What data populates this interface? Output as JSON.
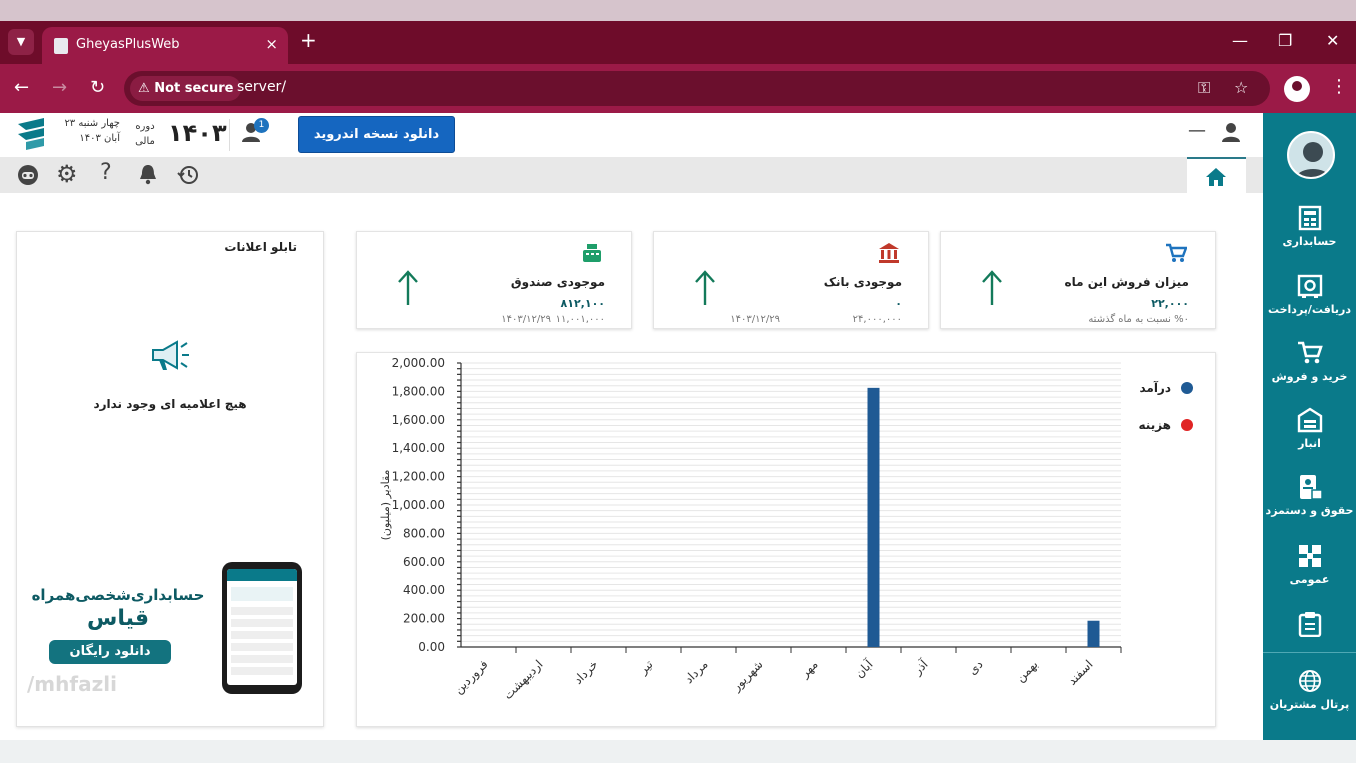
{
  "browser": {
    "tab_title": "GheyasPlusWeb",
    "security_label": "Not secure",
    "url": "server/",
    "tab_close": "×",
    "new_tab": "+",
    "minimize": "—",
    "restore": "❐",
    "close": "✕"
  },
  "header": {
    "date_line1": "چهار شنبه ۲۳",
    "date_line2": "آبان ۱۴۰۳",
    "period_label": "دوره مالی",
    "year": "۱۴۰۳",
    "user_badge_count": "1",
    "download_button": "دانلود نسخه اندروید",
    "minus": "—"
  },
  "sidebar": {
    "items": [
      {
        "label": "حسابداری",
        "icon": "ledger-icon"
      },
      {
        "label": "دریافت/پرداخت",
        "icon": "safe-icon"
      },
      {
        "label": "خرید و فروش",
        "icon": "cart-icon"
      },
      {
        "label": "انبار",
        "icon": "warehouse-icon"
      },
      {
        "label": "حقوق و دستمزد",
        "icon": "payroll-icon"
      },
      {
        "label": "عمومی",
        "icon": "grid-icon"
      },
      {
        "label": "",
        "icon": "clipboard-icon"
      }
    ],
    "portal_label": "پرتال مشتریان"
  },
  "notice_board": {
    "title": "تابلو اعلانات",
    "empty_text": "هیچ اعلامیه ای وجود ندارد",
    "ad_line1": "حسابداری‌شخصی‌همراه",
    "ad_line2": "قیاس",
    "ad_button": "دانلود رایگان",
    "watermark": "/mhfazli"
  },
  "cards": [
    {
      "title": "میزان فروش این ماه",
      "value": "۲۲,۰۰۰",
      "sub_right": "%۰  نسبت به ماه گذشته",
      "sub_left": "",
      "icon": "cart-icon",
      "icon_color": "#1e73be"
    },
    {
      "title": "موجودی بانک",
      "value": "۰",
      "sub_right": "۲۴,۰۰۰,۰۰۰",
      "sub_left": "۱۴۰۳/۱۲/۲۹",
      "icon": "bank-icon",
      "icon_color": "#c0392b"
    },
    {
      "title": "موجودی صندوق",
      "value": "۸۱۲,۱۰۰",
      "sub_right": "۱۱,۰۰۱,۰۰۰",
      "sub_left": "۱۴۰۳/۱۲/۲۹",
      "icon": "cash-register-icon",
      "icon_color": "#1e9e6a"
    }
  ],
  "chart_data": {
    "type": "bar",
    "categories": [
      "فروردین",
      "اردیبهشت",
      "خرداد",
      "تیر",
      "مرداد",
      "شهریور",
      "مهر",
      "آبان",
      "آذر",
      "دی",
      "بهمن",
      "اسفند"
    ],
    "series": [
      {
        "name": "درآمد",
        "color": "#1f5a94",
        "values": [
          0,
          0,
          0,
          0,
          0,
          0,
          0,
          1825,
          0,
          0,
          0,
          185
        ]
      },
      {
        "name": "هزینه",
        "color": "#e02424",
        "values": [
          0,
          0,
          0,
          0,
          0,
          0,
          0,
          0,
          0,
          0,
          0,
          0
        ]
      }
    ],
    "ylabel": "مقادیر (میلیون)",
    "ylim": [
      0,
      2000
    ],
    "yticks": [
      "0.00",
      "200.00",
      "400.00",
      "600.00",
      "800.00",
      "1,000.00",
      "1,200.00",
      "1,400.00",
      "1,600.00",
      "1,800.00",
      "2,000.00"
    ],
    "grid": true,
    "legend": "top-right"
  }
}
